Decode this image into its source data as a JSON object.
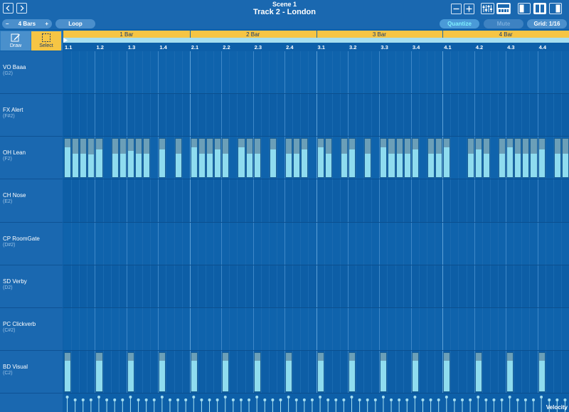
{
  "header": {
    "scene": "Scene 1",
    "title": "Track 2 - London",
    "back_icon": "chevron-left-icon",
    "forward_icon": "chevron-right-icon"
  },
  "toolbar": {
    "bars_minus": "–",
    "bars_value": "4 Bars",
    "bars_plus": "+",
    "loop": "Loop",
    "quantize": "Quantize",
    "mute": "Mute",
    "grid": "Grid: 1/16"
  },
  "tools": {
    "draw": "Draw",
    "select": "Select",
    "active": "select"
  },
  "ruler": {
    "bars": [
      "1 Bar",
      "2 Bar",
      "3 Bar",
      "4 Bar"
    ],
    "beats": [
      "1.1",
      "1.2",
      "1.3",
      "1.4",
      "2.1",
      "2.2",
      "2.3",
      "2.4",
      "3.1",
      "3.2",
      "3.3",
      "3.4",
      "4.1",
      "4.2",
      "4.3",
      "4.4"
    ]
  },
  "lanes": [
    {
      "name": "VO Baaa",
      "note": "(G2)"
    },
    {
      "name": "FX Alert",
      "note": "(F#2)"
    },
    {
      "name": "OH Lean",
      "note": "(F2)"
    },
    {
      "name": "CH Nose",
      "note": "(E2)"
    },
    {
      "name": "CP RoomGate",
      "note": "(D#2)"
    },
    {
      "name": "SD Verby",
      "note": "(D2)"
    },
    {
      "name": "PC Clickverb",
      "note": "(C#2)"
    },
    {
      "name": "BD Visual",
      "note": "(C2)"
    }
  ],
  "velocity_label": "Velocity",
  "colors": {
    "accent_yellow": "#f6c544",
    "note_fill": "#8fdcef",
    "note_head": "#6b9fb8",
    "grid_bg": "#0d5fa8"
  },
  "notes": {
    "OH Lean": [
      {
        "step": 0,
        "vel": 0.78
      },
      {
        "step": 1,
        "vel": 0.62
      },
      {
        "step": 2,
        "vel": 0.62
      },
      {
        "step": 3,
        "vel": 0.6
      },
      {
        "step": 4,
        "vel": 0.72
      },
      {
        "step": 6,
        "vel": 0.62
      },
      {
        "step": 7,
        "vel": 0.62
      },
      {
        "step": 8,
        "vel": 0.7
      },
      {
        "step": 9,
        "vel": 0.62
      },
      {
        "step": 10,
        "vel": 0.62
      },
      {
        "step": 12,
        "vel": 0.72
      },
      {
        "step": 14,
        "vel": 0.62
      },
      {
        "step": 16,
        "vel": 0.78
      },
      {
        "step": 17,
        "vel": 0.62
      },
      {
        "step": 18,
        "vel": 0.62
      },
      {
        "step": 19,
        "vel": 0.72
      },
      {
        "step": 20,
        "vel": 0.62
      },
      {
        "step": 22,
        "vel": 0.78
      },
      {
        "step": 23,
        "vel": 0.62
      },
      {
        "step": 24,
        "vel": 0.62
      },
      {
        "step": 26,
        "vel": 0.72
      },
      {
        "step": 28,
        "vel": 0.62
      },
      {
        "step": 29,
        "vel": 0.62
      },
      {
        "step": 30,
        "vel": 0.72
      },
      {
        "step": 32,
        "vel": 0.78
      },
      {
        "step": 33,
        "vel": 0.62
      },
      {
        "step": 35,
        "vel": 0.62
      },
      {
        "step": 36,
        "vel": 0.72
      },
      {
        "step": 38,
        "vel": 0.62
      },
      {
        "step": 40,
        "vel": 0.78
      },
      {
        "step": 41,
        "vel": 0.62
      },
      {
        "step": 42,
        "vel": 0.62
      },
      {
        "step": 43,
        "vel": 0.62
      },
      {
        "step": 44,
        "vel": 0.72
      },
      {
        "step": 46,
        "vel": 0.62
      },
      {
        "step": 47,
        "vel": 0.62
      },
      {
        "step": 48,
        "vel": 0.78
      },
      {
        "step": 51,
        "vel": 0.62
      },
      {
        "step": 52,
        "vel": 0.72
      },
      {
        "step": 53,
        "vel": 0.62
      },
      {
        "step": 55,
        "vel": 0.62
      },
      {
        "step": 56,
        "vel": 0.78
      },
      {
        "step": 57,
        "vel": 0.62
      },
      {
        "step": 58,
        "vel": 0.62
      },
      {
        "step": 59,
        "vel": 0.62
      },
      {
        "step": 60,
        "vel": 0.72
      },
      {
        "step": 62,
        "vel": 0.62
      },
      {
        "step": 63,
        "vel": 0.62
      }
    ],
    "BD Visual": [
      {
        "step": 0,
        "vel": 0.8
      },
      {
        "step": 4,
        "vel": 0.8
      },
      {
        "step": 8,
        "vel": 0.8
      },
      {
        "step": 12,
        "vel": 0.8
      },
      {
        "step": 16,
        "vel": 0.8
      },
      {
        "step": 20,
        "vel": 0.8
      },
      {
        "step": 24,
        "vel": 0.8
      },
      {
        "step": 28,
        "vel": 0.8
      },
      {
        "step": 32,
        "vel": 0.8
      },
      {
        "step": 36,
        "vel": 0.8
      },
      {
        "step": 40,
        "vel": 0.8
      },
      {
        "step": 44,
        "vel": 0.8
      },
      {
        "step": 48,
        "vel": 0.8
      },
      {
        "step": 52,
        "vel": 0.8
      },
      {
        "step": 56,
        "vel": 0.8
      },
      {
        "step": 60,
        "vel": 0.8
      }
    ]
  }
}
